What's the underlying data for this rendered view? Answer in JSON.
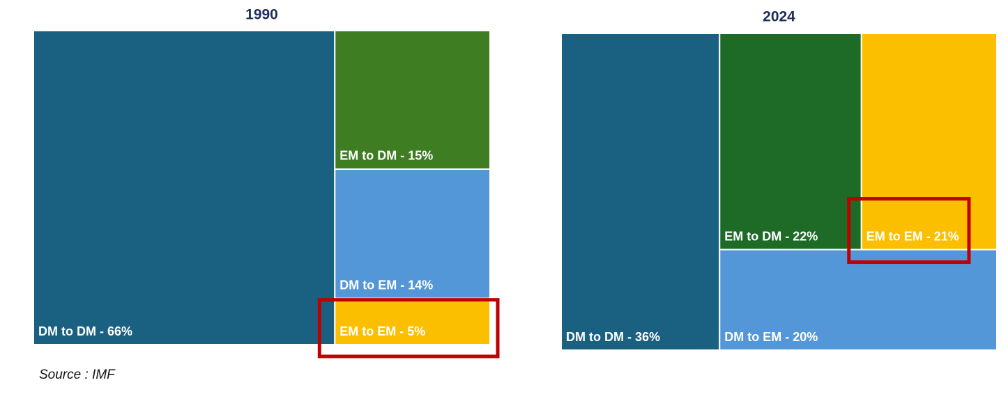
{
  "chart_data": [
    {
      "type": "treemap",
      "title": "1990",
      "values": [
        66,
        15,
        14,
        5
      ],
      "value_labels": [
        "DM to DM - 66%",
        "EM to DM - 15%",
        "DM to EM - 14%",
        "EM to EM - 5%"
      ],
      "colors": [
        "#1a6080",
        "#3f7d23",
        "#5497d8",
        "#fcbf00"
      ]
    },
    {
      "type": "treemap",
      "title": "2024",
      "values": [
        36,
        22,
        20,
        21
      ],
      "value_labels": [
        "DM to DM - 36%",
        "EM to DM - 22%",
        "DM to EM - 20%",
        "EM to EM - 21%"
      ],
      "colors": [
        "#1a6080",
        "#1e6b27",
        "#5497d8",
        "#fcbf00"
      ]
    }
  ],
  "source": "Source : IMF"
}
